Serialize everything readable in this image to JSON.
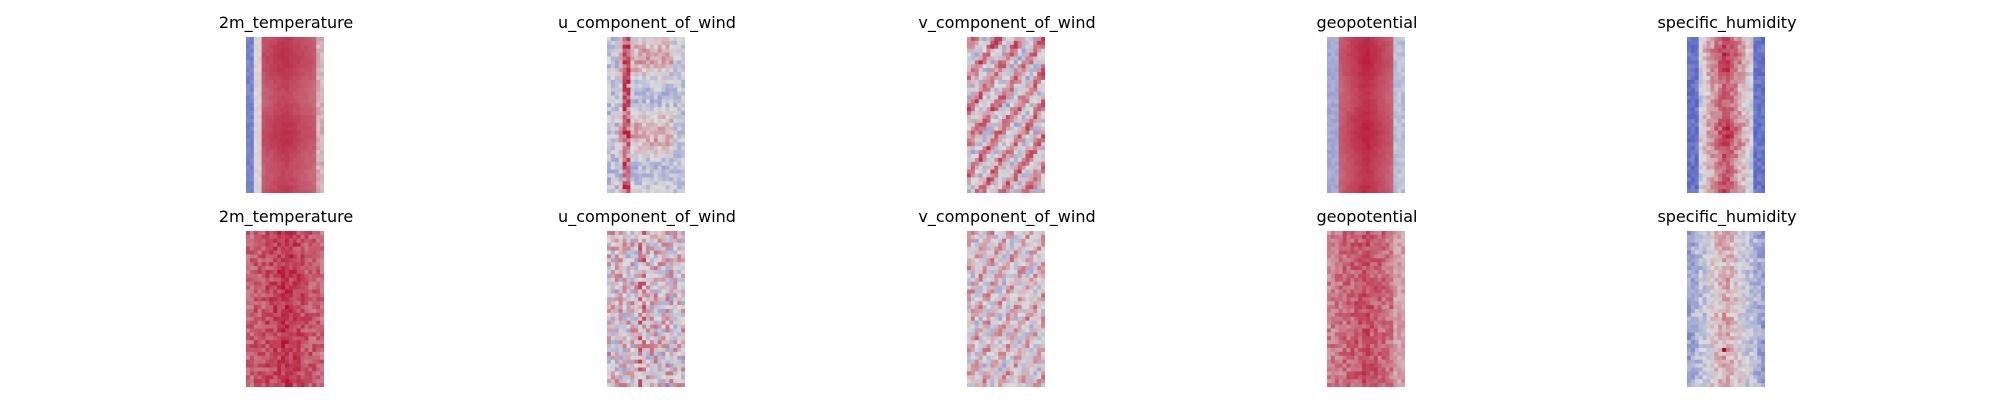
{
  "figure": {
    "colormap": "coolwarm",
    "colormap_low": "#3b4cc0",
    "colormap_mid": "#dddddd",
    "colormap_high": "#b40426"
  },
  "chart_data": [
    {
      "type": "heatmap",
      "title": "2m_temperature",
      "row": 1,
      "pattern": "temperature_smooth"
    },
    {
      "type": "heatmap",
      "title": "u_component_of_wind",
      "row": 1,
      "pattern": "u_wind_smooth"
    },
    {
      "type": "heatmap",
      "title": "v_component_of_wind",
      "row": 1,
      "pattern": "v_wind_smooth"
    },
    {
      "type": "heatmap",
      "title": "geopotential",
      "row": 1,
      "pattern": "geopotential_smooth"
    },
    {
      "type": "heatmap",
      "title": "specific_humidity",
      "row": 1,
      "pattern": "humidity_smooth"
    },
    {
      "type": "heatmap",
      "title": "2m_temperature",
      "row": 2,
      "pattern": "temperature_noisy"
    },
    {
      "type": "heatmap",
      "title": "u_component_of_wind",
      "row": 2,
      "pattern": "u_wind_noisy"
    },
    {
      "type": "heatmap",
      "title": "v_component_of_wind",
      "row": 2,
      "pattern": "v_wind_noisy"
    },
    {
      "type": "heatmap",
      "title": "geopotential",
      "row": 2,
      "pattern": "geopotential_noisy"
    },
    {
      "type": "heatmap",
      "title": "specific_humidity",
      "row": 2,
      "pattern": "humidity_noisy"
    }
  ]
}
